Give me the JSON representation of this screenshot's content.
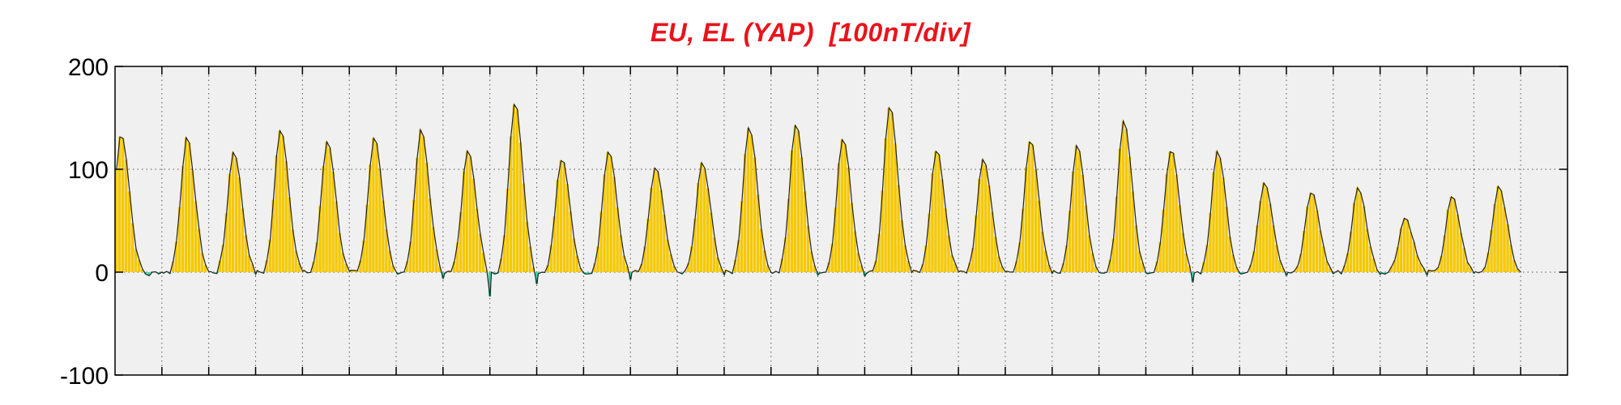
{
  "chart_data": {
    "type": "area",
    "title": "EU, EL (YAP)  [100nT/div]",
    "xlabel": "",
    "ylabel": "",
    "ylim": [
      -100,
      200
    ],
    "yticks": [
      -100,
      0,
      100,
      200
    ],
    "grid": true,
    "x_unit": "day",
    "days": 30,
    "peaks": [
      {
        "day": 1,
        "eu": 135,
        "el": -3
      },
      {
        "day": 2,
        "eu": 130,
        "el": -5
      },
      {
        "day": 3,
        "eu": 118,
        "el": -6
      },
      {
        "day": 4,
        "eu": 140,
        "el": -5
      },
      {
        "day": 5,
        "eu": 128,
        "el": -6
      },
      {
        "day": 6,
        "eu": 132,
        "el": -8
      },
      {
        "day": 7,
        "eu": 138,
        "el": -12
      },
      {
        "day": 8,
        "eu": 120,
        "el": -42
      },
      {
        "day": 9,
        "eu": 165,
        "el": -25
      },
      {
        "day": 10,
        "eu": 110,
        "el": -8
      },
      {
        "day": 11,
        "eu": 118,
        "el": -18
      },
      {
        "day": 12,
        "eu": 102,
        "el": -6
      },
      {
        "day": 13,
        "eu": 106,
        "el": -8
      },
      {
        "day": 14,
        "eu": 142,
        "el": -7
      },
      {
        "day": 15,
        "eu": 145,
        "el": -10
      },
      {
        "day": 16,
        "eu": 130,
        "el": -8
      },
      {
        "day": 17,
        "eu": 162,
        "el": -6
      },
      {
        "day": 18,
        "eu": 118,
        "el": -5
      },
      {
        "day": 19,
        "eu": 110,
        "el": -6
      },
      {
        "day": 20,
        "eu": 128,
        "el": -4
      },
      {
        "day": 21,
        "eu": 122,
        "el": -5
      },
      {
        "day": 22,
        "eu": 148,
        "el": -4
      },
      {
        "day": 23,
        "eu": 120,
        "el": -18
      },
      {
        "day": 24,
        "eu": 118,
        "el": -5
      },
      {
        "day": 25,
        "eu": 88,
        "el": -6
      },
      {
        "day": 26,
        "eu": 78,
        "el": -5
      },
      {
        "day": 27,
        "eu": 82,
        "el": -6
      },
      {
        "day": 28,
        "eu": 53,
        "el": -4
      },
      {
        "day": 29,
        "eu": 73,
        "el": -5
      },
      {
        "day": 30,
        "eu": 84,
        "el": -6
      }
    ],
    "series": [
      {
        "name": "EU",
        "color": "#f5c800"
      },
      {
        "name": "EL",
        "color": "#3fd6a8"
      }
    ],
    "plot_background": "#f0f0f0"
  }
}
